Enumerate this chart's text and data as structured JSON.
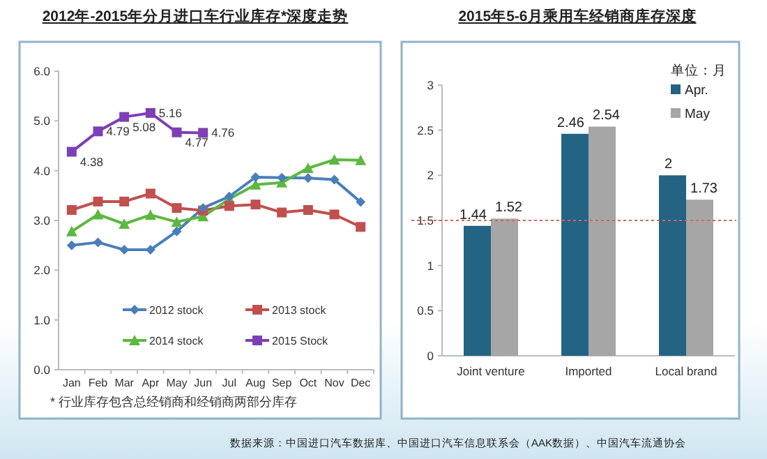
{
  "chart_data": [
    {
      "type": "line",
      "title": "2012年-2015年分月进口车行业库存*深度走势",
      "categories": [
        "Jan",
        "Feb",
        "Mar",
        "Apr",
        "May",
        "Jun",
        "Jul",
        "Aug",
        "Sep",
        "Oct",
        "Nov",
        "Dec"
      ],
      "series": [
        {
          "name": "2012 stock",
          "color": "#4a7ebb",
          "marker": "diamond",
          "values": [
            2.5,
            2.56,
            2.41,
            2.41,
            2.78,
            3.25,
            3.48,
            3.87,
            3.86,
            3.85,
            3.82,
            3.37
          ]
        },
        {
          "name": "2013 stock",
          "color": "#c0504d",
          "marker": "square",
          "values": [
            3.21,
            3.38,
            3.38,
            3.54,
            3.25,
            3.2,
            3.29,
            3.32,
            3.16,
            3.21,
            3.12,
            2.87
          ]
        },
        {
          "name": "2014 stock",
          "color": "#5cb840",
          "marker": "triangle",
          "values": [
            2.78,
            3.12,
            2.93,
            3.11,
            2.97,
            3.08,
            3.43,
            3.72,
            3.76,
            4.05,
            4.22,
            4.21
          ]
        },
        {
          "name": "2015 Stock",
          "color": "#7d3fb5",
          "marker": "square",
          "values": [
            4.38,
            4.79,
            5.08,
            5.16,
            4.77,
            4.76,
            null,
            null,
            null,
            null,
            null,
            null
          ],
          "value_labels": [
            "4.38",
            "4.79",
            "5.08",
            "5.16",
            "4.77",
            "4.76",
            null,
            null,
            null,
            null,
            null,
            null
          ]
        }
      ],
      "ylim": [
        0,
        6
      ],
      "yticks": [
        {
          "value": 0,
          "label": "0.0"
        },
        {
          "value": 1,
          "label": "1.0"
        },
        {
          "value": 2,
          "label": "2.0"
        },
        {
          "value": 3,
          "label": "3.0"
        },
        {
          "value": 4,
          "label": "4.0"
        },
        {
          "value": 5,
          "label": "5.0"
        },
        {
          "value": 6,
          "label": "6.0"
        }
      ],
      "legend": "bottom",
      "annotations": [
        "* 行业库存包含总经销商和经销商两部分库存"
      ]
    },
    {
      "type": "bar",
      "title": "2015年5-6月乘用车经销商库存深度",
      "categories": [
        "Joint venture",
        "Imported",
        "Local brand"
      ],
      "series": [
        {
          "name": "Apr.",
          "color": "#236384",
          "values": [
            1.44,
            2.46,
            2
          ]
        },
        {
          "name": "May",
          "color": "#a6a6a6",
          "values": [
            1.52,
            2.54,
            1.73
          ]
        }
      ],
      "ylim": [
        0,
        3
      ],
      "yticks": [
        0,
        0.5,
        1,
        1.5,
        2,
        2.5,
        3
      ],
      "data_labels": true,
      "legend": "top right",
      "legend_title": "单位：月",
      "ref_lines": [
        {
          "axis": "y",
          "value": 1.5,
          "color": "#e06060",
          "line_style": "dotted"
        }
      ],
      "annotations": [
        "数据来源：中国进口汽车数据库、中国进口汽车信息联系会（AAK数据）、中国汽车流通协会"
      ]
    }
  ]
}
